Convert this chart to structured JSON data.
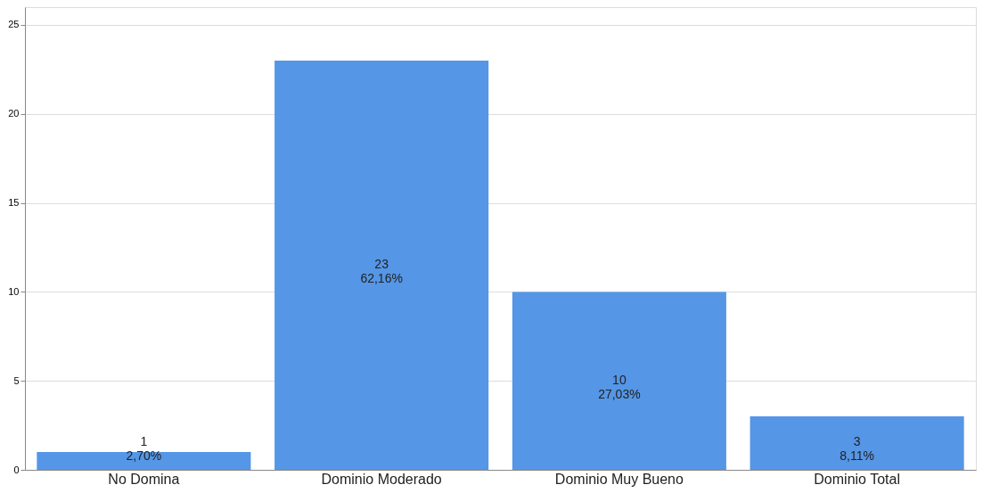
{
  "chart_data": {
    "type": "bar",
    "categories": [
      "No Domina",
      "Dominio Moderado",
      "Dominio Muy Bueno",
      "Dominio Total"
    ],
    "values": [
      1,
      23,
      10,
      3
    ],
    "value_labels": [
      "1\n2,70%",
      "23\n62,16%",
      "10\n27,03%",
      "3\n8,11%"
    ],
    "color": "#5596e6",
    "ylim": [
      0,
      26
    ],
    "yticks": [
      0,
      5,
      10,
      15,
      20,
      25
    ],
    "grid": "y"
  }
}
